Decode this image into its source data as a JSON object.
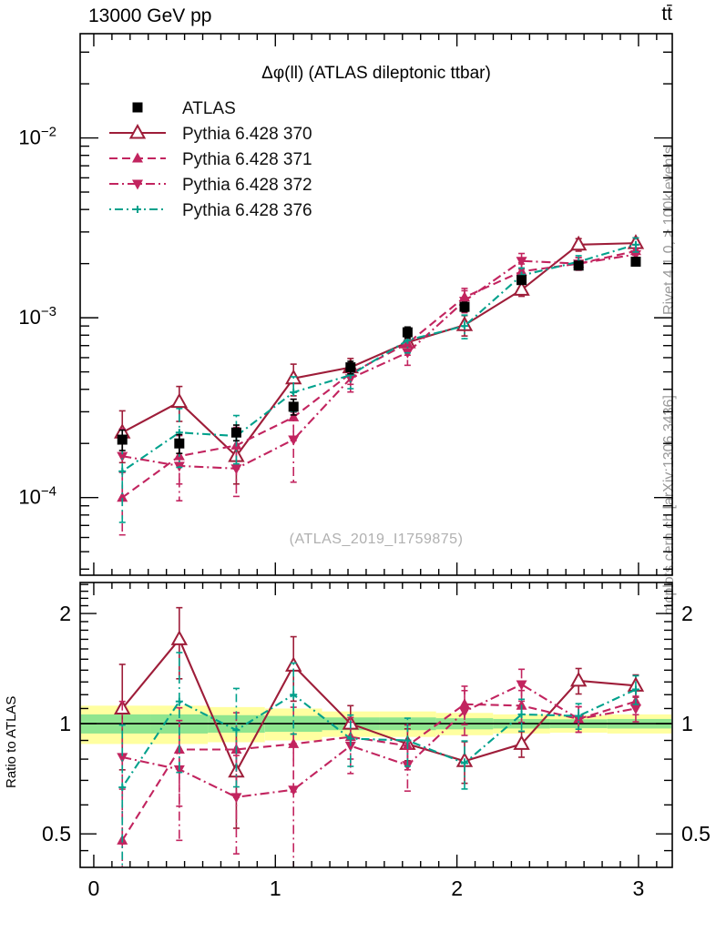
{
  "header": {
    "left": "13000 GeV pp",
    "right": "tt̄"
  },
  "side_notes": {
    "top": "Rivet 4.1.0, ≥ 100k events",
    "bottom": "mcplots.cern.ch [arXiv:1306.3436]"
  },
  "watermark": "(ATLAS_2019_I1759875)",
  "chart_data": {
    "type": "line",
    "title": "Δφ(ll) (ATLAS dileptonic ttbar)",
    "ratio_label": "Ratio to ATLAS",
    "x": [
      0.157,
      0.471,
      0.785,
      1.1,
      1.414,
      1.728,
      2.042,
      2.356,
      2.67,
      2.985
    ],
    "bin_width": 0.31416,
    "x_axis": {
      "min": -0.075,
      "max": 3.186,
      "majors": [
        0,
        1,
        2,
        3
      ],
      "labels": [
        "0",
        "1",
        "2",
        "3"
      ],
      "minor_step": 0.1
    },
    "y_axis_main": {
      "scale": "log",
      "min": 3.7e-05,
      "max": 0.038,
      "decades": [
        {
          "value": 0.01,
          "exp": "−2"
        },
        {
          "value": 0.001,
          "exp": "−3"
        },
        {
          "value": 0.0001,
          "exp": "−4"
        }
      ]
    },
    "y_axis_ratio": {
      "scale": "log",
      "min": 0.405,
      "max": 2.43,
      "majors": [
        {
          "value": 2,
          "label": "2"
        },
        {
          "value": 1,
          "label": "1"
        },
        {
          "value": 0.5,
          "label": "0.5"
        }
      ]
    },
    "series": [
      {
        "name": "ATLAS",
        "kind": "data",
        "color": "#000000",
        "marker": "square",
        "values": [
          0.00021,
          0.0002,
          0.00023,
          0.00032,
          0.00053,
          0.00083,
          0.00115,
          0.00162,
          0.00195,
          0.00205
        ],
        "frac_err": [
          0.13,
          0.12,
          0.1,
          0.1,
          0.08,
          0.07,
          0.06,
          0.05,
          0.05,
          0.05
        ]
      },
      {
        "name": "Pythia 6.428 370",
        "kind": "mc",
        "color": "#9e1d39",
        "dash": "solid",
        "marker": "triangle-open",
        "values": [
          0.00023,
          0.00034,
          0.00017,
          0.00046,
          0.00053,
          0.00073,
          0.00091,
          0.00143,
          0.00255,
          0.0026
        ],
        "ratio": [
          1.1,
          1.7,
          0.74,
          1.44,
          1.0,
          0.88,
          0.79,
          0.88,
          1.31,
          1.27
        ],
        "frac_err": [
          0.32,
          0.22,
          0.3,
          0.2,
          0.12,
          0.1,
          0.13,
          0.08,
          0.08,
          0.07
        ]
      },
      {
        "name": "Pythia 6.428 371",
        "kind": "mc",
        "color": "#c2245f",
        "dash": "dashed",
        "marker": "triangle-up",
        "values": [
          0.0001,
          0.00017,
          0.000195,
          0.00028,
          0.00049,
          0.00072,
          0.0013,
          0.00181,
          0.002,
          0.00235
        ],
        "ratio": [
          0.48,
          0.85,
          0.85,
          0.88,
          0.92,
          0.87,
          1.13,
          1.12,
          1.03,
          1.15
        ],
        "frac_err": [
          0.38,
          0.3,
          0.26,
          0.26,
          0.13,
          0.14,
          0.12,
          0.1,
          0.08,
          0.08
        ]
      },
      {
        "name": "Pythia 6.428 372",
        "kind": "mc",
        "color": "#c2245f",
        "dash": "dashdot",
        "marker": "triangle-down",
        "values": [
          0.00017,
          0.00015,
          0.000145,
          0.00021,
          0.00046,
          0.00064,
          0.00124,
          0.00207,
          0.002,
          0.00225
        ],
        "ratio": [
          0.81,
          0.75,
          0.63,
          0.66,
          0.87,
          0.77,
          1.08,
          1.28,
          1.03,
          1.1
        ],
        "frac_err": [
          0.42,
          0.36,
          0.3,
          0.42,
          0.16,
          0.15,
          0.14,
          0.1,
          0.08,
          0.08
        ]
      },
      {
        "name": "Pythia 6.428 376",
        "kind": "mc",
        "color": "#00a18c",
        "dash": "dashdot2",
        "marker": "plus",
        "values": [
          0.00014,
          0.00023,
          0.00022,
          0.000385,
          0.00048,
          0.00075,
          0.0009,
          0.00172,
          0.00205,
          0.00255
        ],
        "ratio": [
          0.67,
          1.15,
          0.96,
          1.2,
          0.91,
          0.9,
          0.78,
          1.06,
          1.05,
          1.24
        ],
        "frac_err": [
          0.48,
          0.36,
          0.3,
          0.22,
          0.16,
          0.15,
          0.15,
          0.1,
          0.08,
          0.09
        ]
      }
    ],
    "atlas_band": {
      "yellow_halfwidth": [
        0.12,
        0.12,
        0.11,
        0.1,
        0.08,
        0.08,
        0.07,
        0.06,
        0.055,
        0.06
      ],
      "green_halfwidth": [
        0.06,
        0.06,
        0.055,
        0.05,
        0.04,
        0.04,
        0.035,
        0.03,
        0.028,
        0.03
      ],
      "yellow_color": "#ffffa0",
      "green_color": "#8fe58f"
    }
  }
}
